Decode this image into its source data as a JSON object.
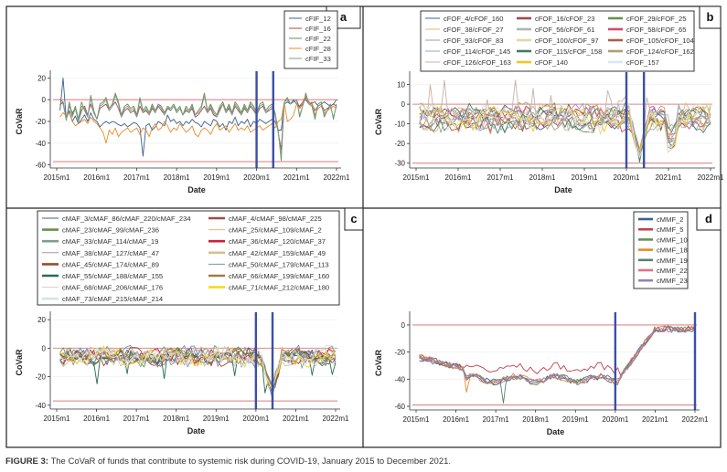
{
  "caption": {
    "label": "FIGURE 3:",
    "text": "The CoVaR of funds that contribute to systemic risk during COVID-19, January 2015 to December 2021."
  },
  "chart_data": [
    {
      "panel": "a",
      "type": "line",
      "xlabel": "Date",
      "ylabel": "CoVaR",
      "x_ticks": [
        "2015m1",
        "2016m1",
        "2017m1",
        "2018m1",
        "2019m1",
        "2020m1",
        "2021m1",
        "2022m1"
      ],
      "y_ticks": [
        20,
        0,
        -20,
        -40,
        -60
      ],
      "ylim": [
        -62,
        22
      ],
      "grid": true,
      "legend_position": "top-right",
      "reference_lines_y": [
        0,
        -57
      ],
      "vertical_markers": [
        "2020m1",
        "2020m6"
      ],
      "series": [
        {
          "name": "cFIF_12",
          "color": "#3f5f8f",
          "values": [
            -10,
            20,
            -18,
            -10,
            -20,
            -15,
            -22,
            -18,
            -14,
            -20,
            -12,
            -18,
            -20,
            -25,
            -22,
            -20,
            -22,
            -20,
            -21,
            -23,
            -24,
            -22,
            -25,
            -23,
            -21,
            -22,
            -26,
            -52,
            -24,
            -22,
            -28,
            -25,
            -20,
            -22,
            -24,
            -14,
            -20,
            -18,
            -22,
            -20,
            -24,
            -20,
            -22,
            -18,
            -21,
            -22,
            -25,
            -20,
            -22,
            -24,
            -18,
            -20,
            -25,
            -22,
            -28,
            -20,
            -22,
            -16,
            -24,
            -20,
            -22,
            -18,
            -25,
            -20,
            -22,
            -18,
            -20,
            -22,
            -20,
            -18,
            -20,
            -28,
            -28,
            -4,
            -2,
            -4,
            0,
            -4,
            -6,
            -2,
            0,
            -4,
            -3,
            -2,
            -6,
            -4,
            -2,
            -4,
            -6,
            -4,
            0
          ]
        },
        {
          "name": "cFIF_16",
          "color": "#a04a50",
          "values": [
            -5,
            -2,
            -17,
            -6,
            -12,
            -8,
            -20,
            -10,
            -6,
            -14,
            -4,
            -12,
            -18,
            -8,
            -6,
            -4,
            -10,
            -6,
            -2,
            -8,
            -16,
            -10,
            -8,
            -12,
            -10,
            -16,
            -6,
            -12,
            -10,
            -14,
            -8,
            -12,
            -6,
            -10,
            -14,
            -8,
            -10,
            -6,
            -12,
            -8,
            -14,
            -10,
            -12,
            -8,
            -16,
            -14,
            -10,
            -6,
            -12,
            -8,
            -14,
            -16,
            -10,
            -4,
            -12,
            -8,
            -14,
            -6,
            -10,
            -14,
            -8,
            -12,
            -6,
            -10,
            -14,
            -8,
            -6,
            -12,
            -10,
            -8,
            -14,
            -30,
            -46,
            -2,
            0,
            -4,
            -2,
            0,
            -8,
            -4,
            2,
            -2,
            -4,
            -10,
            -6,
            -4,
            -10,
            -8,
            -6,
            -4,
            -6
          ]
        },
        {
          "name": "cFIF_22",
          "color": "#6a8f4e",
          "values": [
            0,
            -2,
            -19,
            -2,
            -14,
            -6,
            -18,
            -2,
            -10,
            -16,
            4,
            -10,
            -18,
            -4,
            -2,
            2,
            -8,
            -4,
            6,
            -2,
            -14,
            -6,
            -4,
            -8,
            -6,
            -14,
            2,
            -10,
            -6,
            -12,
            -4,
            -10,
            -4,
            -6,
            -12,
            -6,
            -8,
            -4,
            -10,
            -6,
            -14,
            -6,
            -10,
            -4,
            -14,
            -10,
            -6,
            6,
            -10,
            -4,
            -10,
            -14,
            -6,
            -2,
            -10,
            -4,
            -12,
            -2,
            -6,
            -12,
            -4,
            -10,
            -2,
            -6,
            -12,
            -4,
            -2,
            -10,
            -6,
            -4,
            -12,
            -28,
            -56,
            -2,
            2,
            -4,
            -2,
            0,
            -16,
            -6,
            6,
            -4,
            -6,
            -18,
            -4,
            -2,
            -16,
            -10,
            -4,
            -18,
            -4
          ]
        },
        {
          "name": "cFIF_28",
          "color": "#e48c2a",
          "values": [
            -16,
            -12,
            -15,
            -12,
            -20,
            -24,
            -22,
            -20,
            -18,
            -22,
            -16,
            -20,
            -22,
            -26,
            -30,
            -40,
            -28,
            -32,
            -26,
            -34,
            -30,
            -28,
            -26,
            -30,
            -28,
            -26,
            -32,
            -26,
            -28,
            -34,
            -26,
            -22,
            -28,
            -26,
            -20,
            -24,
            -30,
            -26,
            -28,
            -22,
            -26,
            -30,
            -28,
            -24,
            -32,
            -34,
            -28,
            -26,
            -28,
            -32,
            -26,
            -22,
            -28,
            -26,
            -24,
            -30,
            -26,
            -22,
            -28,
            -26,
            -28,
            -24,
            -30,
            -28,
            -26,
            -24,
            -28,
            -26,
            -24,
            -22,
            -26,
            -20,
            -18,
            -2,
            -20,
            -18,
            -14,
            -4,
            -8,
            -2,
            4,
            -4,
            -2,
            -14,
            -8,
            -6,
            -12,
            -10,
            -8,
            -6,
            -8
          ]
        },
        {
          "name": "cFIF_33",
          "color": "#7f9c90",
          "values": [
            -2,
            -4,
            -18,
            -4,
            -16,
            -8,
            -20,
            -6,
            -8,
            -16,
            2,
            -12,
            -18,
            -6,
            -4,
            0,
            -10,
            -6,
            4,
            -4,
            -16,
            -8,
            -6,
            -10,
            -8,
            -16,
            0,
            -12,
            -8,
            -14,
            -6,
            -12,
            -4,
            -8,
            -14,
            -6,
            -10,
            -6,
            -12,
            -8,
            -14,
            -8,
            -12,
            -6,
            -14,
            -12,
            -8,
            4,
            -12,
            -6,
            -12,
            -16,
            -8,
            -4,
            -12,
            -6,
            -14,
            -4,
            -8,
            -14,
            -6,
            -12,
            -4,
            -8,
            -14,
            -6,
            -4,
            -12,
            -8,
            -6,
            -14,
            -30,
            -52,
            -2,
            0,
            -4,
            -2,
            0,
            -14,
            -6,
            4,
            -4,
            -4,
            -16,
            -6,
            -4,
            -14,
            -10,
            -6,
            -16,
            -6
          ]
        }
      ]
    },
    {
      "panel": "b",
      "type": "line",
      "xlabel": "Date",
      "ylabel": "CoVaR",
      "x_ticks": [
        "2015m1",
        "2016m1",
        "2017m1",
        "2018m1",
        "2019m1",
        "2020m1",
        "2021m1",
        "2022m1"
      ],
      "y_ticks": [
        10,
        0,
        -10,
        -20,
        -30
      ],
      "ylim": [
        -32,
        14
      ],
      "grid": true,
      "legend_position": "top",
      "reference_lines_y": [
        0,
        -30
      ],
      "vertical_markers": [
        "2020m1",
        "2020m6"
      ],
      "series": [
        {
          "name": "cFOF_4/cFOF_160",
          "color": "#3f5f8f"
        },
        {
          "name": "cFOF_16/cFOF_23",
          "color": "#a04a50"
        },
        {
          "name": "cFOF_29/cFOF_25",
          "color": "#6a8f4e"
        },
        {
          "name": "cFOF_38/cFOF_27",
          "color": "#f0b070"
        },
        {
          "name": "cFOF_56/cFOF_61",
          "color": "#a8b8b0"
        },
        {
          "name": "cFOF_58/cFOF_65",
          "color": "#d04c70"
        },
        {
          "name": "cFOF_93/cFOF_83",
          "color": "#a090c8"
        },
        {
          "name": "cFOF_100/cFOF_97",
          "color": "#ddd8a8"
        },
        {
          "name": "cFOF_105/cFOF_104",
          "color": "#a86040"
        },
        {
          "name": "cFOF_114/cFOF_145",
          "color": "#98a8b0"
        },
        {
          "name": "cFOF_115/cFOF_158",
          "color": "#3f7a6a"
        },
        {
          "name": "cFOF_124/cFOF_162",
          "color": "#b0a070"
        },
        {
          "name": "cFOF_126/cFOF_163",
          "color": "#c8b0a8"
        },
        {
          "name": "cFOF_140",
          "color": "#f0c820"
        },
        {
          "name": "cFOF_157",
          "color": "#d8e8f0"
        }
      ],
      "summary": {
        "typical_range": [
          -20,
          5
        ],
        "min": -29,
        "max": 13,
        "covid_trough": -29
      }
    },
    {
      "panel": "c",
      "type": "line",
      "xlabel": "Date",
      "ylabel": "CoVaR",
      "x_ticks": [
        "2015m1",
        "2016m1",
        "2017m1",
        "2018m1",
        "2019m1",
        "2020m1",
        "2021m1",
        "2022m1"
      ],
      "y_ticks": [
        20,
        0,
        -20,
        -40
      ],
      "ylim": [
        -42,
        22
      ],
      "grid": true,
      "legend_position": "top",
      "reference_lines_y": [
        0,
        -37
      ],
      "vertical_markers": [
        "2020m1",
        "2020m6"
      ],
      "series": [
        {
          "name": "cMAF_3/cMAF_86/cMAF_220/cMAF_234",
          "color": "#3f5f8f"
        },
        {
          "name": "cMAF_4/cMAF_98/cMAF_225",
          "color": "#a04a50"
        },
        {
          "name": "cMAF_23/cMAF_99/cMAF_236",
          "color": "#6a8f4e"
        },
        {
          "name": "cMAF_25/cMAF_109/cMAF_2",
          "color": "#f0b070"
        },
        {
          "name": "cMAF_33/cMAF_114/cMAF_19",
          "color": "#7f9c90"
        },
        {
          "name": "cMAF_36/cMAF_120/cMAF_37",
          "color": "#c8203c"
        },
        {
          "name": "cMAF_38/cMAF_127/cMAF_47",
          "color": "#a090c8"
        },
        {
          "name": "cMAF_42/cMAF_159/cMAF_49",
          "color": "#d0c490"
        },
        {
          "name": "cMAF_45/cMAF_174/cMAF_89",
          "color": "#a04a28"
        },
        {
          "name": "cMAF_50/cMAF_179/cMAF_113",
          "color": "#7890a8"
        },
        {
          "name": "cMAF_55/cMAF_188/cMAF_155",
          "color": "#2a6a58"
        },
        {
          "name": "cMAF_66/cMAF_199/cMAF_160",
          "color": "#9a8040"
        },
        {
          "name": "cMAF_68/cMAF_206/cMAF_176",
          "color": "#e0c8c4"
        },
        {
          "name": "cMAF_71/cMAF_212/cMAF_180",
          "color": "#f8d820"
        },
        {
          "name": "cMAF_73/cMAF_215/cMAF_214",
          "color": "#d4e4ec"
        }
      ],
      "summary": {
        "typical_range": [
          -20,
          5
        ],
        "min": -37,
        "max": 14,
        "covid_trough": -37
      }
    },
    {
      "panel": "d",
      "type": "line",
      "xlabel": "Date",
      "ylabel": "CoVaR",
      "x_ticks": [
        "2015m1",
        "2016m1",
        "2017m1",
        "2018m1",
        "2019m1",
        "2020m1",
        "2021m1",
        "2022m1"
      ],
      "y_ticks": [
        0,
        -20,
        -40,
        -60
      ],
      "ylim": [
        -62,
        6
      ],
      "grid": true,
      "legend_position": "top-right",
      "reference_lines_y": [
        0,
        -59
      ],
      "vertical_markers": [
        "2020m1",
        "2022m1"
      ],
      "series": [
        {
          "name": "cMMF_2",
          "color": "#3f5f8f"
        },
        {
          "name": "cMMF_5",
          "color": "#c04050"
        },
        {
          "name": "cMMF_10",
          "color": "#6a8f4e"
        },
        {
          "name": "cMMF_18",
          "color": "#e48c2a"
        },
        {
          "name": "cMMF_19",
          "color": "#5a8070"
        },
        {
          "name": "cMMF_22",
          "color": "#e07088"
        },
        {
          "name": "cMMF_23",
          "color": "#8a84c0"
        }
      ],
      "summary": {
        "2015_level": -25,
        "2016_2019_level": -40,
        "2019_end": -37,
        "2020_2021_level": -3,
        "min": -59
      }
    }
  ]
}
